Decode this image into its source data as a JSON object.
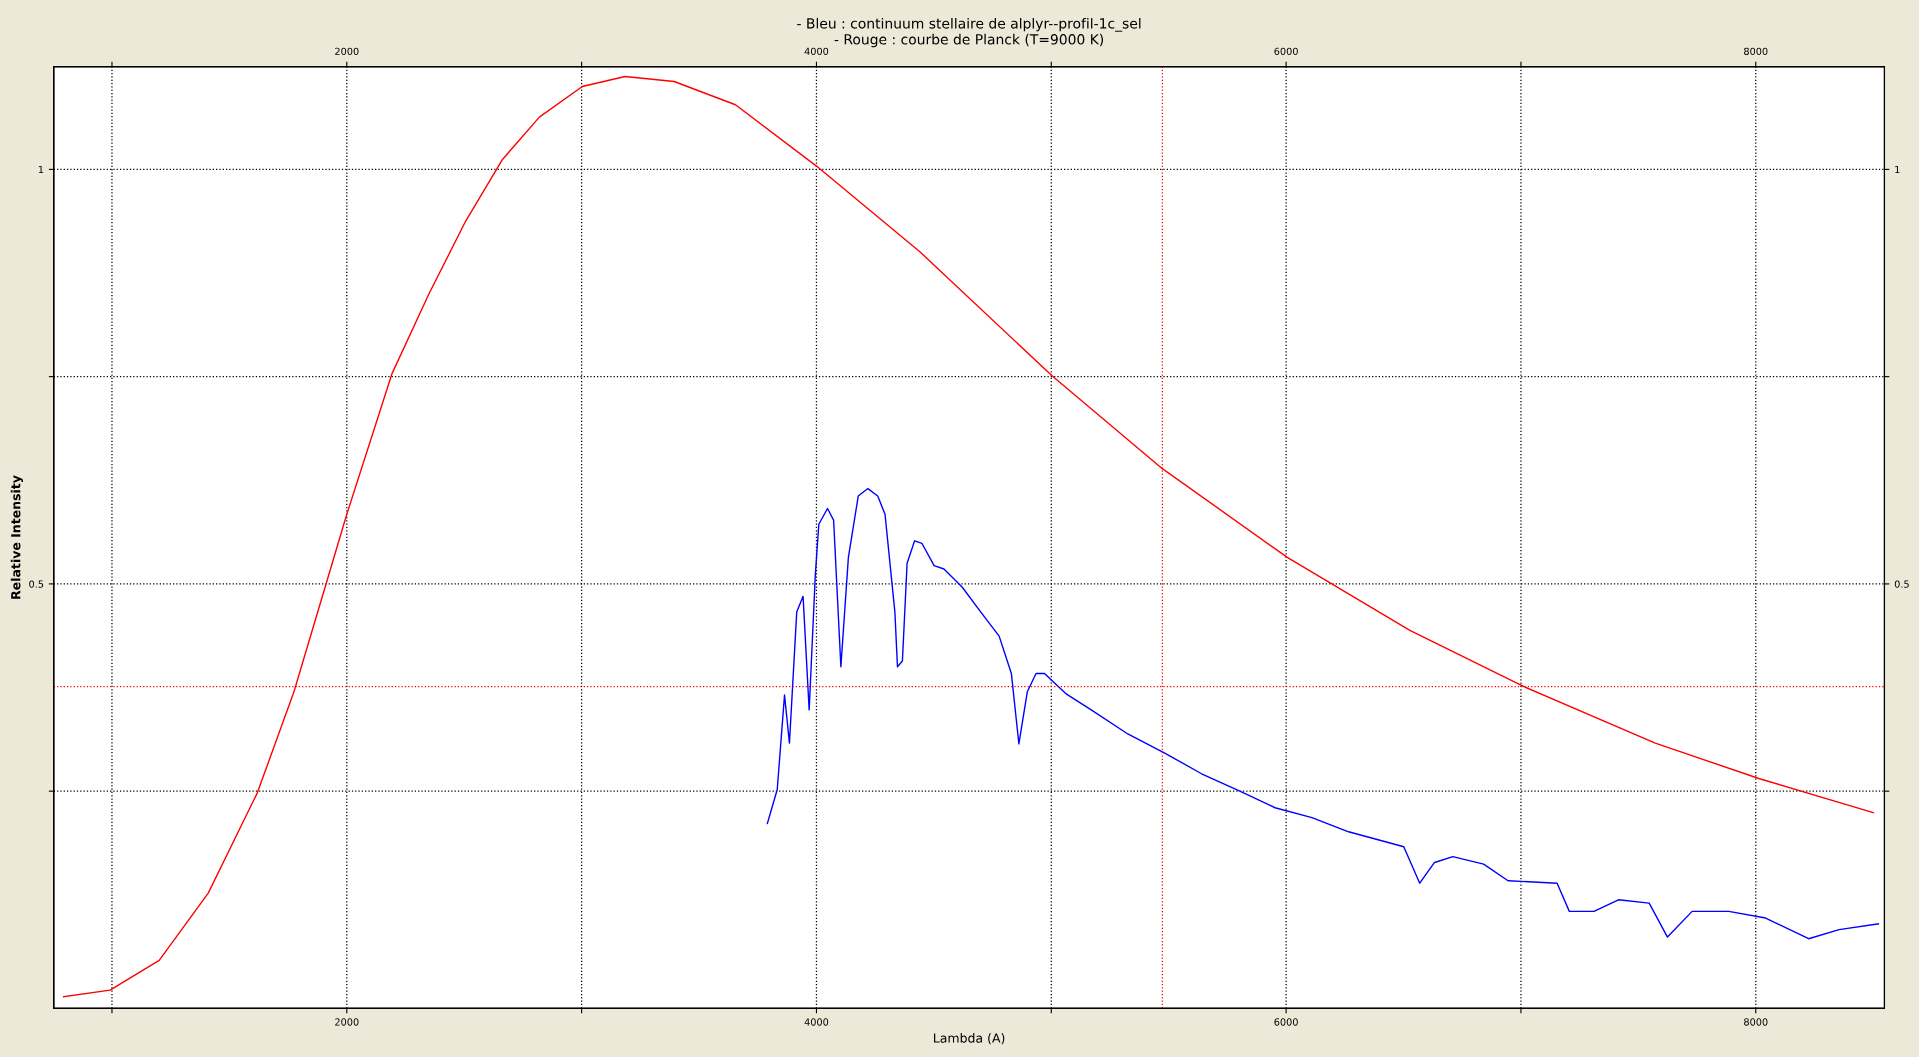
{
  "chart_data": {
    "type": "line",
    "title": "- Bleu : continuum stellaire de alplyr--profil-1c_sel\n- Rouge : courbe de Planck (T=9000 K)",
    "xlabel": "Lambda (A)",
    "ylabel": "Relative Intensity",
    "xlim": [
      752,
      8548
    ],
    "ylim": [
      -0.012,
      1.124
    ],
    "xticks": [
      {
        "value": 1000,
        "label": null
      },
      2000,
      {
        "value": 3000,
        "label": null
      },
      4000,
      {
        "value": 5000,
        "label": null
      },
      6000,
      {
        "value": 7000,
        "label": null
      },
      8000
    ],
    "x2lim": [
      752,
      8548
    ],
    "x2ticks": [
      {
        "value": 1000,
        "label": null
      },
      2000,
      {
        "value": 3000,
        "label": null
      },
      4000,
      {
        "value": 5000,
        "label": null
      },
      6000,
      {
        "value": 7000,
        "label": null
      },
      8000
    ],
    "yticks": [
      {
        "value": 0.25,
        "label": null
      },
      0.5,
      {
        "value": 0.75,
        "label": null
      },
      1
    ],
    "y2lim": [
      -0.012,
      1.124
    ],
    "y2ticks": [
      {
        "value": 0.25,
        "label": null
      },
      0.5,
      {
        "value": 0.75,
        "label": null
      },
      1
    ],
    "grid": true,
    "legend": false,
    "line_style": "solid",
    "ref_lines": [
      {
        "axis": "x",
        "value": 5473,
        "label": null,
        "color": "#ff0000",
        "line_style": "dotted"
      },
      {
        "axis": "y",
        "value": 0.376,
        "label": null,
        "color": "#ff0000",
        "line_style": "dotted"
      }
    ],
    "series": [
      {
        "color": "#ff0000",
        "x": [
          794,
          992,
          1201,
          1410,
          1619,
          1775,
          2000,
          2193,
          2350,
          2507,
          2663,
          2820,
          3003,
          3185,
          3394,
          3655,
          4000,
          4439,
          5003,
          5473,
          6005,
          6527,
          7013,
          7572,
          8016,
          8501
        ],
        "values": [
          0.002,
          0.01,
          0.046,
          0.127,
          0.248,
          0.37,
          0.584,
          0.754,
          0.85,
          0.938,
          1.012,
          1.063,
          1.1,
          1.112,
          1.106,
          1.078,
          1.004,
          0.901,
          0.751,
          0.639,
          0.532,
          0.444,
          0.376,
          0.308,
          0.265,
          0.224
        ]
      },
      {
        "color": "#0000ff",
        "x": [
          3791,
          3833,
          3864,
          3885,
          3916,
          3943,
          3969,
          3995,
          4010,
          4047,
          4073,
          4104,
          4136,
          4178,
          4219,
          4261,
          4292,
          4334,
          4345,
          4366,
          4386,
          4418,
          4449,
          4501,
          4543,
          4621,
          4700,
          4778,
          4830,
          4862,
          4898,
          4935,
          4971,
          5065,
          5170,
          5326,
          5483,
          5640,
          5796,
          5953,
          6110,
          6266,
          6423,
          6501,
          6569,
          6632,
          6710,
          6841,
          6945,
          7154,
          7206,
          7311,
          7415,
          7546,
          7624,
          7729,
          7885,
          8042,
          8225,
          8355,
          8522
        ],
        "values": [
          0.211,
          0.252,
          0.366,
          0.308,
          0.466,
          0.485,
          0.348,
          0.51,
          0.572,
          0.591,
          0.577,
          0.4,
          0.532,
          0.606,
          0.615,
          0.606,
          0.584,
          0.466,
          0.4,
          0.407,
          0.525,
          0.552,
          0.549,
          0.522,
          0.518,
          0.496,
          0.466,
          0.437,
          0.392,
          0.307,
          0.37,
          0.392,
          0.392,
          0.367,
          0.348,
          0.319,
          0.296,
          0.271,
          0.251,
          0.23,
          0.218,
          0.201,
          0.189,
          0.183,
          0.139,
          0.164,
          0.171,
          0.162,
          0.142,
          0.139,
          0.105,
          0.105,
          0.119,
          0.115,
          0.074,
          0.105,
          0.105,
          0.097,
          0.072,
          0.083,
          0.09
        ]
      }
    ]
  }
}
